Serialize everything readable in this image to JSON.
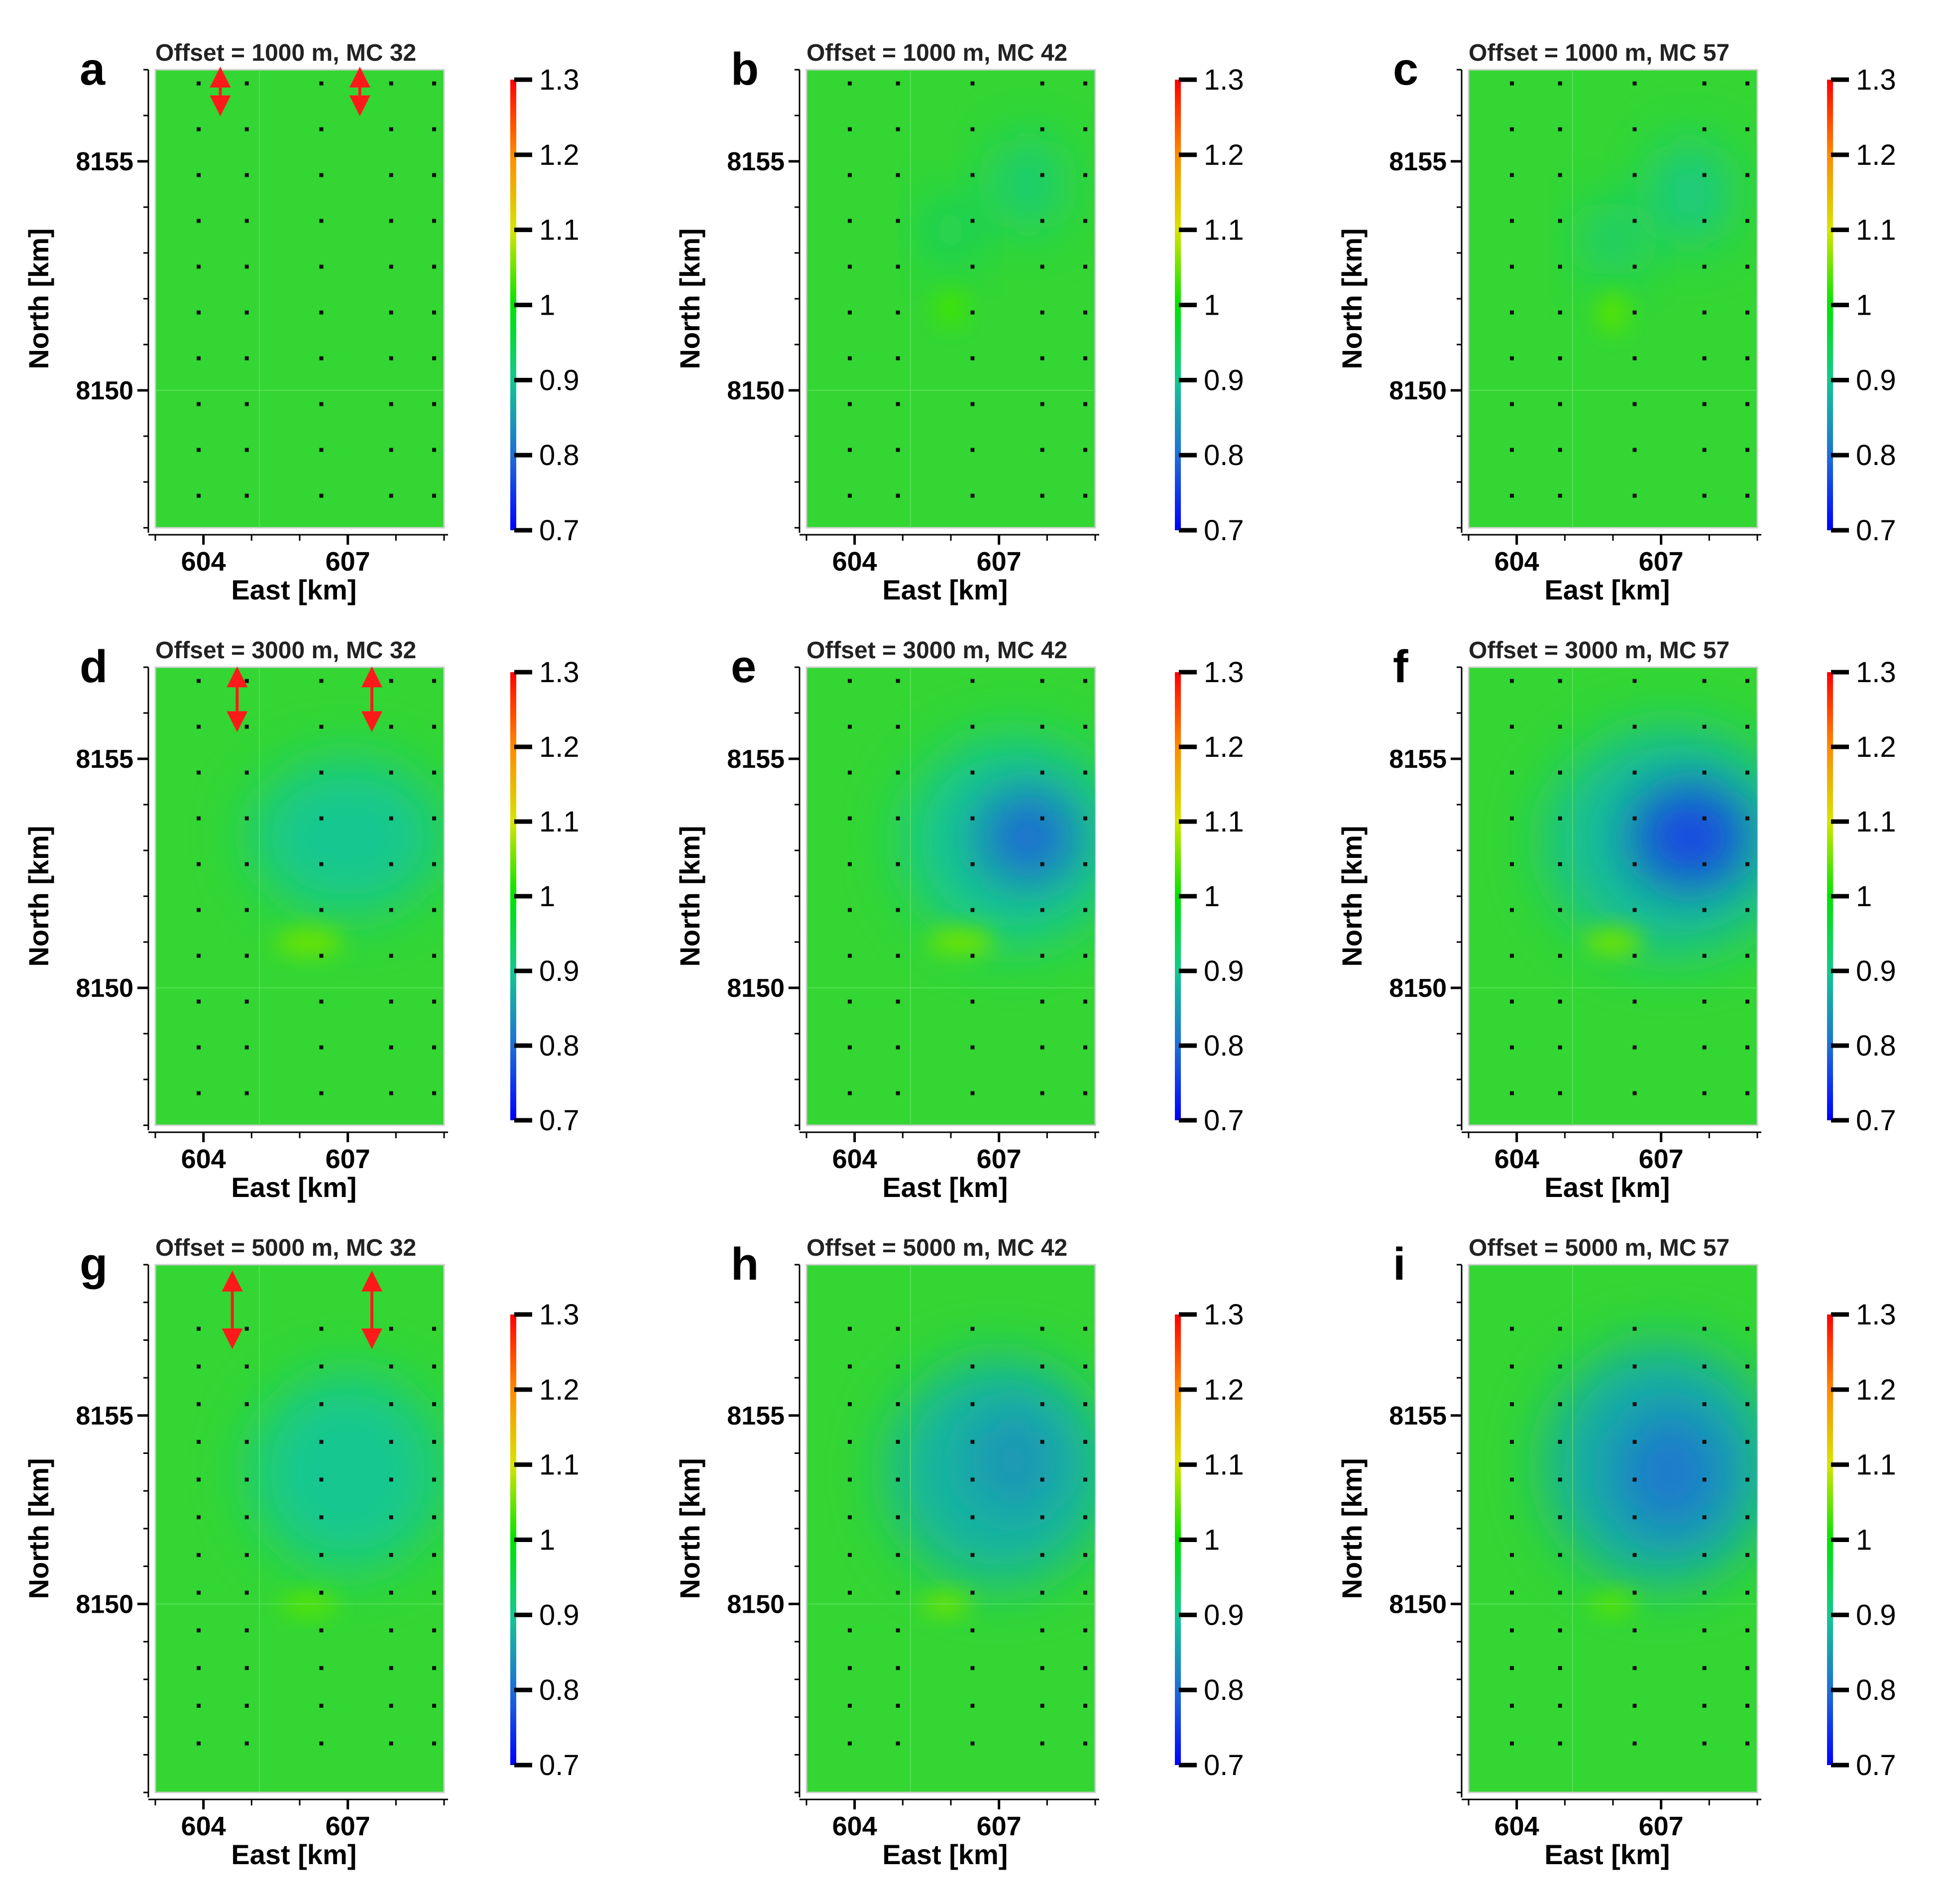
{
  "figure": {
    "panel_order": [
      "a",
      "b",
      "c",
      "d",
      "e",
      "f",
      "g",
      "h",
      "i"
    ],
    "colorbar": {
      "range": [
        0.7,
        1.3
      ],
      "ticks": [
        "1.3",
        "1.2",
        "1.1",
        "1",
        "0.9",
        "0.8",
        "0.7"
      ],
      "stops": [
        {
          "value": 0.7,
          "color": "#0000ff"
        },
        {
          "value": 0.8,
          "color": "#1f6fd6"
        },
        {
          "value": 0.9,
          "color": "#14c890"
        },
        {
          "value": 1.0,
          "color": "#00e400"
        },
        {
          "value": 1.1,
          "color": "#d8e400"
        },
        {
          "value": 1.2,
          "color": "#ff8a00"
        },
        {
          "value": 1.3,
          "color": "#ff0000"
        }
      ]
    },
    "colors": {
      "background": "#ffffff",
      "field": "#33d633",
      "station": "#111111",
      "arrow": "#ff1a1a",
      "text": "#000000"
    }
  },
  "chart_data": [
    {
      "type": "heatmap",
      "panel": "a",
      "title": "Offset = 1000 m, MC 32",
      "xlabel": "East [km]",
      "ylabel": "North [km]",
      "xlim": [
        603,
        609
      ],
      "ylim": [
        8147,
        8157
      ],
      "xticks": [
        "604",
        "607"
      ],
      "yticks": [
        "8150",
        "8155"
      ],
      "ytick_values": [
        8150,
        8155
      ],
      "stations": {
        "x": [
          604.9,
          606.45,
          608.0
        ],
        "y": [
          8147.7,
          8148.7,
          8149.7,
          8150.7,
          8151.7,
          8152.7,
          8153.7,
          8154.7,
          8155.7,
          8156.7
        ]
      },
      "arrows": [
        {
          "x": 604.35,
          "y_from": 8156.95,
          "y_to": 8156.1
        },
        {
          "x": 607.25,
          "y_from": 8156.95,
          "y_to": 8156.1
        }
      ],
      "anomalies": []
    },
    {
      "type": "heatmap",
      "panel": "b",
      "title": "Offset = 1000 m, MC 42",
      "xlabel": "East [km]",
      "ylabel": "North [km]",
      "xlim": [
        603,
        609
      ],
      "ylim": [
        8147,
        8157
      ],
      "xticks": [
        "604",
        "607"
      ],
      "yticks": [
        "8150",
        "8155"
      ],
      "ytick_values": [
        8150,
        8155
      ],
      "stations": {
        "x": [
          604.9,
          606.45,
          608.0
        ],
        "y": [
          8147.7,
          8148.7,
          8149.7,
          8150.7,
          8151.7,
          8152.7,
          8153.7,
          8154.7,
          8155.7,
          8156.7
        ]
      },
      "arrows": [],
      "anomalies": [
        {
          "x": 607.6,
          "y": 8154.5,
          "rx": 0.7,
          "ry": 1.0,
          "value": 0.91
        },
        {
          "x": 606.0,
          "y": 8153.5,
          "rx": 0.5,
          "ry": 0.7,
          "value": 0.92
        },
        {
          "x": 606.0,
          "y": 8151.8,
          "rx": 0.3,
          "ry": 0.4,
          "value": 1.03
        }
      ]
    },
    {
      "type": "heatmap",
      "panel": "c",
      "title": "Offset = 1000 m, MC 57",
      "xlabel": "East [km]",
      "ylabel": "North [km]",
      "xlim": [
        603,
        609
      ],
      "ylim": [
        8147,
        8157
      ],
      "xticks": [
        "604",
        "607"
      ],
      "yticks": [
        "8150",
        "8155"
      ],
      "ytick_values": [
        8150,
        8155
      ],
      "stations": {
        "x": [
          604.9,
          606.45,
          608.0
        ],
        "y": [
          8147.7,
          8148.7,
          8149.7,
          8150.7,
          8151.7,
          8152.7,
          8153.7,
          8154.7,
          8155.7,
          8156.7
        ]
      },
      "arrows": [],
      "anomalies": [
        {
          "x": 607.6,
          "y": 8154.3,
          "rx": 0.8,
          "ry": 1.1,
          "value": 0.9
        },
        {
          "x": 606.0,
          "y": 8153.3,
          "rx": 0.6,
          "ry": 0.8,
          "value": 0.91
        },
        {
          "x": 606.0,
          "y": 8151.7,
          "rx": 0.3,
          "ry": 0.45,
          "value": 1.04
        }
      ]
    },
    {
      "type": "heatmap",
      "panel": "d",
      "title": "Offset = 3000 m, MC 32",
      "xlabel": "East [km]",
      "ylabel": "North [km]",
      "xlim": [
        603,
        609
      ],
      "ylim": [
        8147,
        8157
      ],
      "xticks": [
        "604",
        "607"
      ],
      "yticks": [
        "8150",
        "8155"
      ],
      "ytick_values": [
        8150,
        8155
      ],
      "stations": {
        "x": [
          604.9,
          606.45,
          608.0
        ],
        "y": [
          8147.7,
          8148.7,
          8149.7,
          8150.7,
          8151.7,
          8152.7,
          8153.7,
          8154.7,
          8155.7,
          8156.7
        ]
      },
      "arrows": [
        {
          "x": 604.7,
          "y_from": 8156.9,
          "y_to": 8155.7
        },
        {
          "x": 607.5,
          "y_from": 8156.9,
          "y_to": 8155.7
        }
      ],
      "anomalies": [
        {
          "x": 607.0,
          "y": 8153.3,
          "rx": 2.0,
          "ry": 1.7,
          "value": 0.9
        },
        {
          "x": 606.2,
          "y": 8151.0,
          "rx": 0.7,
          "ry": 0.3,
          "value": 1.05
        }
      ]
    },
    {
      "type": "heatmap",
      "panel": "e",
      "title": "Offset = 3000 m, MC 42",
      "xlabel": "East [km]",
      "ylabel": "North [km]",
      "xlim": [
        603,
        609
      ],
      "ylim": [
        8147,
        8157
      ],
      "xticks": [
        "604",
        "607"
      ],
      "yticks": [
        "8150",
        "8155"
      ],
      "ytick_values": [
        8150,
        8155
      ],
      "stations": {
        "x": [
          604.9,
          606.45,
          608.0
        ],
        "y": [
          8147.7,
          8148.7,
          8149.7,
          8150.7,
          8151.7,
          8152.7,
          8153.7,
          8154.7,
          8155.7,
          8156.7
        ]
      },
      "arrows": [],
      "anomalies": [
        {
          "x": 607.3,
          "y": 8153.2,
          "rx": 2.3,
          "ry": 2.3,
          "value": 0.9
        },
        {
          "x": 607.6,
          "y": 8153.3,
          "rx": 1.0,
          "ry": 1.0,
          "value": 0.79
        },
        {
          "x": 606.2,
          "y": 8151.0,
          "rx": 0.7,
          "ry": 0.3,
          "value": 1.05
        }
      ]
    },
    {
      "type": "heatmap",
      "panel": "f",
      "title": "Offset = 3000 m, MC 57",
      "xlabel": "East [km]",
      "ylabel": "North [km]",
      "xlim": [
        603,
        609
      ],
      "ylim": [
        8147,
        8157
      ],
      "xticks": [
        "604",
        "607"
      ],
      "yticks": [
        "8150",
        "8155"
      ],
      "ytick_values": [
        8150,
        8155
      ],
      "stations": {
        "x": [
          604.9,
          606.45,
          608.0
        ],
        "y": [
          8147.7,
          8148.7,
          8149.7,
          8150.7,
          8151.7,
          8152.7,
          8153.7,
          8154.7,
          8155.7,
          8156.7
        ]
      },
      "arrows": [],
      "anomalies": [
        {
          "x": 607.2,
          "y": 8153.2,
          "rx": 2.6,
          "ry": 2.5,
          "value": 0.89
        },
        {
          "x": 607.6,
          "y": 8153.3,
          "rx": 1.2,
          "ry": 1.1,
          "value": 0.76
        },
        {
          "x": 606.0,
          "y": 8151.0,
          "rx": 0.6,
          "ry": 0.3,
          "value": 1.05
        }
      ]
    },
    {
      "type": "heatmap",
      "panel": "g",
      "title": "Offset = 5000 m, MC 32",
      "xlabel": "East [km]",
      "ylabel": "North [km]",
      "xlim": [
        603,
        609
      ],
      "ylim": [
        8145,
        8159
      ],
      "xticks": [
        "604",
        "607"
      ],
      "yticks": [
        "8150",
        "8155"
      ],
      "ytick_values": [
        8150,
        8155
      ],
      "stations": {
        "x": [
          604.9,
          606.45,
          608.0
        ],
        "y": [
          8146.3,
          8147.3,
          8148.3,
          8149.3,
          8150.3,
          8151.3,
          8152.3,
          8153.3,
          8154.3,
          8155.3,
          8156.3,
          8157.3
        ]
      },
      "arrows": [
        {
          "x": 604.6,
          "y_from": 8158.7,
          "y_to": 8156.9
        },
        {
          "x": 607.5,
          "y_from": 8158.7,
          "y_to": 8156.9
        }
      ],
      "anomalies": [
        {
          "x": 607.0,
          "y": 8153.5,
          "rx": 2.0,
          "ry": 2.6,
          "value": 0.9
        },
        {
          "x": 606.2,
          "y": 8150.0,
          "rx": 0.6,
          "ry": 0.3,
          "value": 1.04
        }
      ]
    },
    {
      "type": "heatmap",
      "panel": "h",
      "title": "Offset = 5000 m, MC 42",
      "xlabel": "East [km]",
      "ylabel": "North [km]",
      "xlim": [
        603,
        609
      ],
      "ylim": [
        8145,
        8159
      ],
      "xticks": [
        "604",
        "607"
      ],
      "yticks": [
        "8150",
        "8155"
      ],
      "ytick_values": [
        8150,
        8155
      ],
      "stations": {
        "x": [
          604.9,
          606.45,
          608.0
        ],
        "y": [
          8146.3,
          8147.3,
          8148.3,
          8149.3,
          8150.3,
          8151.3,
          8152.3,
          8153.3,
          8154.3,
          8155.3,
          8156.3,
          8157.3
        ]
      },
      "arrows": [],
      "anomalies": [
        {
          "x": 607.0,
          "y": 8153.5,
          "rx": 2.3,
          "ry": 3.0,
          "value": 0.88
        },
        {
          "x": 607.3,
          "y": 8153.8,
          "rx": 0.9,
          "ry": 1.4,
          "value": 0.84
        },
        {
          "x": 605.9,
          "y": 8150.0,
          "rx": 0.5,
          "ry": 0.3,
          "value": 1.05
        }
      ]
    },
    {
      "type": "heatmap",
      "panel": "i",
      "title": "Offset = 5000 m, MC 57",
      "xlabel": "East [km]",
      "ylabel": "North [km]",
      "xlim": [
        603,
        609
      ],
      "ylim": [
        8145,
        8159
      ],
      "xticks": [
        "604",
        "607"
      ],
      "yticks": [
        "8150",
        "8155"
      ],
      "ytick_values": [
        8150,
        8155
      ],
      "stations": {
        "x": [
          604.9,
          606.45,
          608.0
        ],
        "y": [
          8146.3,
          8147.3,
          8148.3,
          8149.3,
          8150.3,
          8151.3,
          8152.3,
          8153.3,
          8154.3,
          8155.3,
          8156.3,
          8157.3
        ]
      },
      "arrows": [],
      "anomalies": [
        {
          "x": 607.0,
          "y": 8153.7,
          "rx": 2.4,
          "ry": 3.2,
          "value": 0.87
        },
        {
          "x": 607.2,
          "y": 8153.5,
          "rx": 1.1,
          "ry": 1.6,
          "value": 0.81
        },
        {
          "x": 606.0,
          "y": 8150.0,
          "rx": 0.5,
          "ry": 0.3,
          "value": 1.04
        }
      ]
    }
  ]
}
